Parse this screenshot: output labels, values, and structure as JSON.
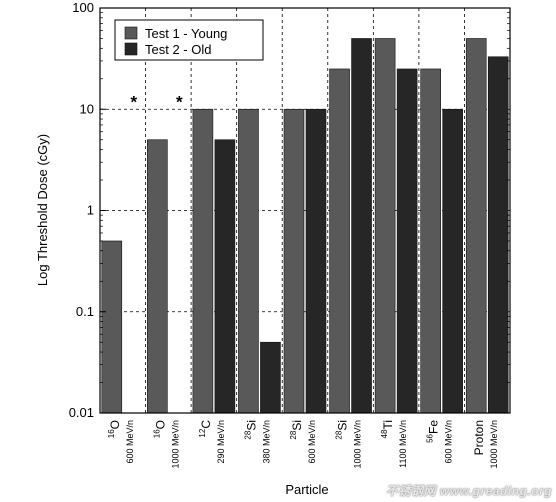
{
  "chart_data": {
    "type": "bar",
    "title": "",
    "xlabel": "Particle",
    "ylabel": "Log Threshold Dose (cGy)",
    "yscale": "log",
    "ylim": [
      0.01,
      100
    ],
    "yticks": [
      "0.01",
      "0.1",
      "1",
      "10",
      "100"
    ],
    "grid": "dashed",
    "legend_position": "top-left",
    "categories": [
      {
        "sup": "16",
        "el": "O",
        "energy": "600 MeV/n"
      },
      {
        "sup": "16",
        "el": "O",
        "energy": "1000 MeV/n"
      },
      {
        "sup": "12",
        "el": "C",
        "energy": "290 MeV/n"
      },
      {
        "sup": "28",
        "el": "Si",
        "energy": "380 MeV/n"
      },
      {
        "sup": "28",
        "el": "Si",
        "energy": "600 MeV/n"
      },
      {
        "sup": "28",
        "el": "Si",
        "energy": "1000 MeV/n"
      },
      {
        "sup": "48",
        "el": "Ti",
        "energy": "1100 MeV/n"
      },
      {
        "sup": "56",
        "el": "Fe",
        "energy": "600 MeV/n"
      },
      {
        "sup": "",
        "el": "Proton",
        "energy": "1000 MeV/n"
      }
    ],
    "series": [
      {
        "name": "Test 1 - Young",
        "color": "#595959",
        "values": [
          0.5,
          5,
          10,
          10,
          10,
          25,
          50,
          25,
          50
        ]
      },
      {
        "name": "Test 2 - Old",
        "color": "#262626",
        "values": [
          null,
          null,
          5,
          0.05,
          10,
          50,
          25,
          10,
          33
        ]
      }
    ],
    "annotations": [
      {
        "category_index": 0,
        "series": "Test 2 - Old",
        "text": "*"
      },
      {
        "category_index": 1,
        "series": "Test 2 - Old",
        "text": "*"
      }
    ]
  },
  "watermark": "不锈钢网 www.greading.org"
}
